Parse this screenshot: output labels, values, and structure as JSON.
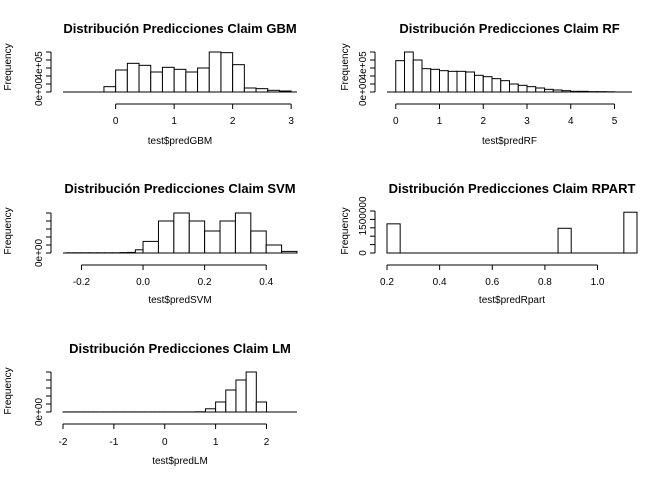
{
  "figure": {
    "layout": "3x2 grid of histograms"
  },
  "chart_data": [
    {
      "type": "bar",
      "title": "Distribución Predicciones Claim GBM",
      "xlabel": "test$predGBM",
      "ylabel": "Frequency",
      "xlim": [
        -0.9,
        3.1
      ],
      "ylim": [
        0,
        600000
      ],
      "xticks": [
        "0",
        "1",
        "2",
        "3"
      ],
      "xtick_values": [
        0,
        1,
        2,
        3
      ],
      "yticks": [
        "0e+00",
        "4e+05"
      ],
      "ytick_values": [
        0,
        400000
      ],
      "bin_edges": [
        -0.2,
        0,
        0.2,
        0.4,
        0.6,
        0.8,
        1,
        1.2,
        1.4,
        1.6,
        1.8,
        2,
        2.2,
        2.4,
        2.6,
        2.8,
        3
      ],
      "values": [
        80000,
        330000,
        430000,
        400000,
        300000,
        370000,
        340000,
        300000,
        360000,
        600000,
        590000,
        410000,
        60000,
        50000,
        25000,
        15000
      ]
    },
    {
      "type": "bar",
      "title": "Distribución Predicciones Claim RF",
      "xlabel": "test$predRF",
      "ylabel": "Frequency",
      "xlim": [
        -0.2,
        5.4
      ],
      "ylim": [
        0,
        600000
      ],
      "xticks": [
        "0",
        "1",
        "2",
        "3",
        "4",
        "5"
      ],
      "xtick_values": [
        0,
        1,
        2,
        3,
        4,
        5
      ],
      "yticks": [
        "0e+00",
        "4e+05"
      ],
      "ytick_values": [
        0,
        400000
      ],
      "bin_edges": [
        0,
        0.2,
        0.4,
        0.6,
        0.8,
        1,
        1.2,
        1.4,
        1.6,
        1.8,
        2,
        2.2,
        2.4,
        2.6,
        2.8,
        3,
        3.2,
        3.4,
        3.6,
        3.8,
        4,
        4.2,
        4.4,
        4.6,
        4.8,
        5
      ],
      "values": [
        470000,
        600000,
        480000,
        350000,
        340000,
        320000,
        310000,
        310000,
        300000,
        250000,
        230000,
        200000,
        170000,
        120000,
        100000,
        80000,
        60000,
        40000,
        30000,
        20000,
        10000,
        10000,
        5000,
        5000,
        3000
      ]
    },
    {
      "type": "bar",
      "title": "Distribución Predicciones Claim SVM",
      "xlabel": "test$predSVM",
      "ylabel": "Frequency",
      "xlim": [
        -0.26,
        0.5
      ],
      "ylim": [
        0,
        1000
      ],
      "xticks": [
        "-0.2",
        "0.0",
        "0.2",
        "0.4"
      ],
      "xtick_values": [
        -0.2,
        0,
        0.2,
        0.4
      ],
      "yticks": [
        "0e+00"
      ],
      "ytick_values": [
        0
      ],
      "bin_edges": [
        -0.25,
        -0.225,
        -0.2,
        -0.175,
        -0.15,
        -0.125,
        -0.1,
        -0.075,
        -0.05,
        -0.025,
        0,
        0.05,
        0.1,
        0.15,
        0.2,
        0.25,
        0.3,
        0.35,
        0.4,
        0.45,
        0.5
      ],
      "values": [
        5,
        5,
        5,
        5,
        5,
        5,
        5,
        10,
        15,
        80,
        290,
        800,
        1000,
        800,
        550,
        800,
        1000,
        550,
        200,
        40
      ]
    },
    {
      "type": "bar",
      "title": "Distribución Predicciones Claim RPART",
      "xlabel": "test$predRpart",
      "ylabel": "Frequency",
      "xlim": [
        0.2,
        1.15
      ],
      "ylim": [
        0,
        1700000
      ],
      "xticks": [
        "0.2",
        "0.4",
        "0.6",
        "0.8",
        "1.0"
      ],
      "xtick_values": [
        0.2,
        0.4,
        0.6,
        0.8,
        1.0
      ],
      "yticks": [
        "0",
        "1500000"
      ],
      "ytick_values": [
        0,
        1500000
      ],
      "bin_edges": [
        0.2,
        0.25,
        0.3,
        0.35,
        0.4,
        0.45,
        0.5,
        0.55,
        0.6,
        0.65,
        0.7,
        0.75,
        0.8,
        0.85,
        0.9,
        0.95,
        1,
        1.05,
        1.1,
        1.15
      ],
      "values": [
        1180000,
        0,
        0,
        0,
        0,
        0,
        0,
        0,
        0,
        0,
        0,
        0,
        0,
        1000000,
        0,
        0,
        0,
        0,
        1650000
      ]
    },
    {
      "type": "bar",
      "title": "Distribución Predicciones Claim LM",
      "xlabel": "test$predLM",
      "ylabel": "Frequency",
      "xlim": [
        -2,
        2.6
      ],
      "ylim": [
        0,
        1000
      ],
      "xticks": [
        "-2",
        "-1",
        "0",
        "1",
        "2"
      ],
      "xtick_values": [
        -2,
        -1,
        0,
        1,
        2
      ],
      "yticks": [
        "0e+00"
      ],
      "ytick_values": [
        0
      ],
      "bin_edges": [
        -2,
        -1.8,
        -1.6,
        -1.4,
        -1.2,
        -1,
        -0.8,
        -0.6,
        -0.4,
        -0.2,
        0,
        0.2,
        0.4,
        0.6,
        0.8,
        1,
        1.2,
        1.4,
        1.6,
        1.8,
        2
      ],
      "values": [
        2,
        2,
        2,
        2,
        2,
        2,
        2,
        2,
        2,
        2,
        2,
        2,
        2,
        5,
        80,
        250,
        550,
        800,
        1000,
        250
      ]
    }
  ]
}
